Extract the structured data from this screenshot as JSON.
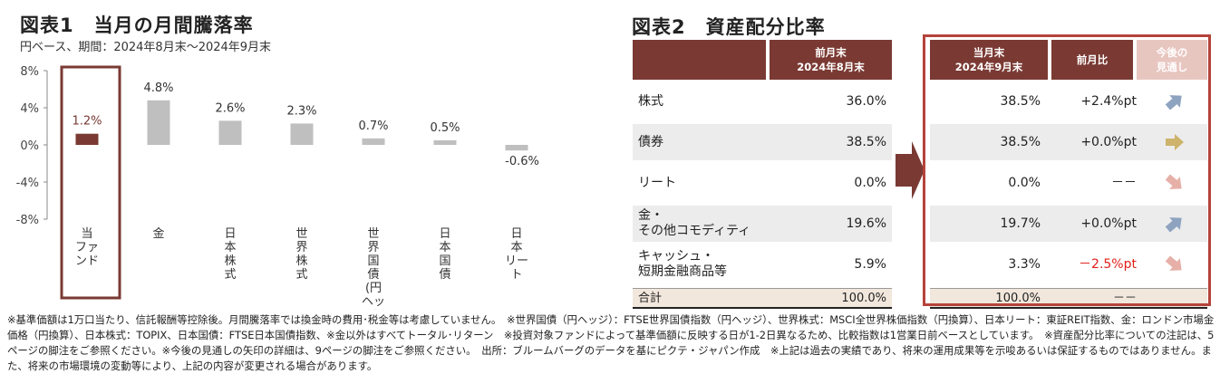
{
  "chart1": {
    "title": "図表1　当月の月間騰落率",
    "subtitle": "円ベース、期間：2024年8月末～2024年9月末"
  },
  "chart_data": {
    "type": "bar",
    "categories": [
      "当ファンド",
      "金",
      "日本株式",
      "世界株式",
      "世界国債（円ヘッジ）",
      "日本国債",
      "日本リート"
    ],
    "category_labels": [
      "当\nファ\nンド",
      "金",
      "日\n本\n株\n式",
      "世\n界\n株\n式",
      "世\n界\n国\n債\n(円\nヘッ\nジ)",
      "日\n本\n国\n債",
      "日\n本\nリー\nト"
    ],
    "values": [
      1.2,
      4.8,
      2.6,
      2.3,
      0.7,
      0.5,
      -0.6
    ],
    "value_labels": [
      "1.2%",
      "4.8%",
      "2.6%",
      "2.3%",
      "0.7%",
      "0.5%",
      "-0.6%"
    ],
    "yticks": [
      "8%",
      "4%",
      "0%",
      "-4%",
      "-8%"
    ],
    "ylim": [
      -8,
      8
    ],
    "highlight_index": 0,
    "colors": {
      "highlight": "#7a3a33",
      "other": "#bfbfbf",
      "frame": "#7a3a33"
    }
  },
  "table": {
    "title": "図表2　資産配分比率",
    "headers": {
      "prev": "前月末\n2024年8月末",
      "curr": "当月末\n2024年9月末",
      "diff": "前月比",
      "outlook": "今後の\n見通し"
    },
    "rows": [
      {
        "label": "株式",
        "prev": "36.0%",
        "curr": "38.5%",
        "diff": "+2.4%pt",
        "outlook": "up-right-arrow"
      },
      {
        "label": "債券",
        "prev": "38.5%",
        "curr": "38.5%",
        "diff": "+0.0%pt",
        "outlook": "right-arrow"
      },
      {
        "label": "リート",
        "prev": "0.0%",
        "curr": "0.0%",
        "diff": "－－",
        "outlook": "down-right-arrow"
      },
      {
        "label": "金・\nその他コモディティ",
        "prev": "19.6%",
        "curr": "19.7%",
        "diff": "+0.0%pt",
        "outlook": "up-right-arrow"
      },
      {
        "label": "キャッシュ・\n短期金融商品等",
        "prev": "5.9%",
        "curr": "3.3%",
        "diff": "－2.5%pt",
        "outlook": "down-right-arrow"
      }
    ],
    "total": {
      "label": "合計",
      "prev": "100.0%",
      "curr": "100.0%",
      "diff": "－－"
    },
    "colors": {
      "header": "#7a3a33",
      "outlook_header": "#e8c6c0",
      "frame": "#b4433b",
      "arrow_up": "#8ea3c0",
      "arrow_flat": "#cdb36b",
      "arrow_down": "#e6b0a8",
      "negative": "#e0201a"
    }
  },
  "notes": "※基準価額は1万口当たり、信託報酬等控除後。月間騰落率では換金時の費用･税金等は考慮していません。　※世界国債（円ヘッジ）：FTSE世界国債指数（円ヘッジ）、世界株式：MSCI全世界株価指数（円換算）、日本リート：東証REIT指数、金：ロンドン市場金価格（円換算）、日本株式：TOPIX、日本国債：FTSE日本国債指数、※金以外はすべてトータル･リターン　※投資対象ファンドによって基準価額に反映する日が1-2日異なるため、比較指数は1営業日前ベースとしています。　※資産配分比率についての注記は、5ページの脚注をご参照ください。※今後の見通しの矢印の詳細は、9ページの脚注をご参照ください。　出所：ブルームバーグのデータを基にピクテ・ジャパン作成　※上記は過去の実績であり、将来の運用成果等を示唆あるいは保証するものではありません。また、将来の市場環境の変動等により、上記の内容が変更される場合があります。"
}
